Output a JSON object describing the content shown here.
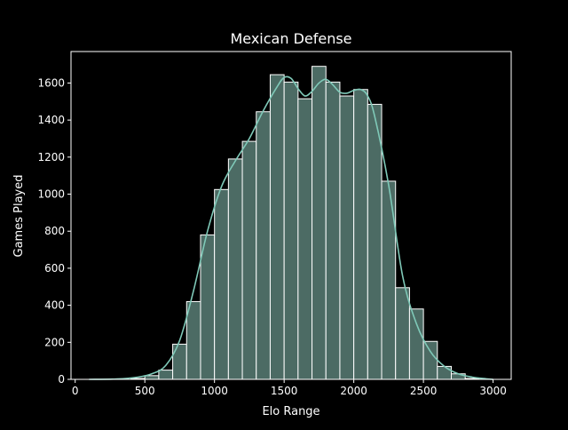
{
  "chart_data": {
    "type": "bar",
    "title": "Mexican Defense",
    "xlabel": "Elo Range",
    "ylabel": "Games Played",
    "xlim": [
      -30,
      3130
    ],
    "ylim": [
      0,
      1770
    ],
    "x_ticks": [
      0,
      500,
      1000,
      1500,
      2000,
      2500,
      3000
    ],
    "y_ticks": [
      0,
      200,
      400,
      600,
      800,
      1000,
      1200,
      1400,
      1600
    ],
    "bins": {
      "start": 100,
      "width": 100,
      "values": [
        0,
        0,
        0,
        5,
        20,
        50,
        190,
        420,
        780,
        1025,
        1190,
        1285,
        1445,
        1645,
        1605,
        1515,
        1690,
        1605,
        1530,
        1565,
        1485,
        1070,
        495,
        380,
        205,
        70,
        30,
        5,
        0
      ]
    },
    "kde": {
      "x": [
        100,
        300,
        450,
        550,
        650,
        750,
        850,
        950,
        1050,
        1150,
        1250,
        1350,
        1450,
        1500,
        1550,
        1600,
        1650,
        1700,
        1750,
        1800,
        1850,
        1900,
        1950,
        2000,
        2050,
        2100,
        2150,
        2250,
        2350,
        2450,
        2550,
        2650,
        2750,
        2850,
        2950,
        3000
      ],
      "y": [
        0,
        2,
        12,
        30,
        75,
        210,
        480,
        800,
        1040,
        1180,
        1300,
        1450,
        1580,
        1630,
        1625,
        1570,
        1530,
        1555,
        1600,
        1620,
        1590,
        1550,
        1545,
        1560,
        1565,
        1530,
        1420,
        1050,
        560,
        300,
        150,
        70,
        30,
        12,
        3,
        0
      ]
    },
    "colors": {
      "background": "#000000",
      "bar_fill": "#4c6b64",
      "bar_edge": "#ffffff",
      "kde_line": "#7fc9b8",
      "text": "#ffffff"
    },
    "grid": false,
    "legend": "none"
  }
}
